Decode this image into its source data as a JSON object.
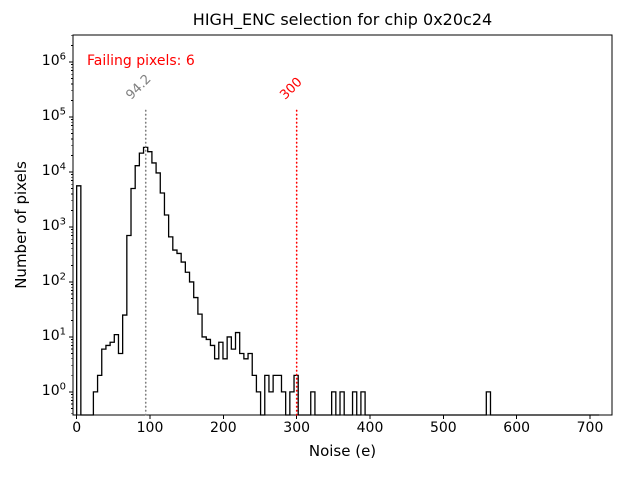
{
  "figure": {
    "title": "HIGH_ENC selection for chip 0x20c24",
    "annotation": {
      "text": "Failing pixels: 6",
      "color": "#ff0000"
    }
  },
  "chart_data": {
    "type": "histogram-step",
    "title": "HIGH_ENC selection for chip 0x20c24",
    "xlabel": "Noise (e)",
    "ylabel": "Number of pixels",
    "yscale": "log",
    "grid": false,
    "legend": null,
    "xlim": [
      -5,
      730
    ],
    "ylim": [
      0.38,
      3100000
    ],
    "x_ticks": [
      0,
      100,
      200,
      300,
      400,
      500,
      600,
      700
    ],
    "y_tick_exponents": [
      0,
      1,
      2,
      3,
      4,
      5,
      6
    ],
    "line_color": "#000000",
    "bin_width": 5.7,
    "bins": [
      [
        0.0,
        5600
      ],
      [
        22.8,
        1
      ],
      [
        28.5,
        2
      ],
      [
        34.2,
        6
      ],
      [
        39.9,
        7
      ],
      [
        45.6,
        8
      ],
      [
        51.3,
        11
      ],
      [
        57.0,
        5
      ],
      [
        62.7,
        25
      ],
      [
        68.4,
        700
      ],
      [
        74.1,
        5000
      ],
      [
        79.8,
        13000
      ],
      [
        85.5,
        22000
      ],
      [
        91.2,
        28000
      ],
      [
        96.9,
        23400
      ],
      [
        102.6,
        14600
      ],
      [
        108.3,
        9600
      ],
      [
        114.0,
        4150
      ],
      [
        119.7,
        1650
      ],
      [
        125.4,
        660
      ],
      [
        131.1,
        380
      ],
      [
        136.8,
        330
      ],
      [
        142.5,
        230
      ],
      [
        148.2,
        150
      ],
      [
        153.9,
        100
      ],
      [
        159.6,
        52
      ],
      [
        165.3,
        26
      ],
      [
        171.0,
        10
      ],
      [
        176.7,
        9
      ],
      [
        182.4,
        7
      ],
      [
        188.1,
        4
      ],
      [
        193.8,
        8
      ],
      [
        199.5,
        4
      ],
      [
        205.2,
        10
      ],
      [
        210.9,
        6
      ],
      [
        216.6,
        12
      ],
      [
        222.3,
        5
      ],
      [
        228.0,
        4
      ],
      [
        233.7,
        5
      ],
      [
        239.4,
        2
      ],
      [
        245.1,
        1
      ],
      [
        256.5,
        2
      ],
      [
        262.2,
        1
      ],
      [
        267.9,
        2
      ],
      [
        273.6,
        2
      ],
      [
        279.3,
        1
      ],
      [
        290.7,
        1
      ],
      [
        296.4,
        2
      ],
      [
        319.2,
        1
      ],
      [
        347.7,
        1
      ],
      [
        359.1,
        1
      ],
      [
        376.2,
        1
      ],
      [
        387.6,
        1
      ],
      [
        558.6,
        1
      ]
    ],
    "vlines": [
      {
        "x": 94.2,
        "label": "94.2",
        "color": "#7f7f7f",
        "style": "dotted"
      },
      {
        "x": 300,
        "label": "300",
        "color": "#ff0000",
        "style": "dotted"
      }
    ],
    "annotations": [
      {
        "text": "Failing pixels: 6",
        "color": "#ff0000",
        "position": "top-left"
      }
    ]
  }
}
